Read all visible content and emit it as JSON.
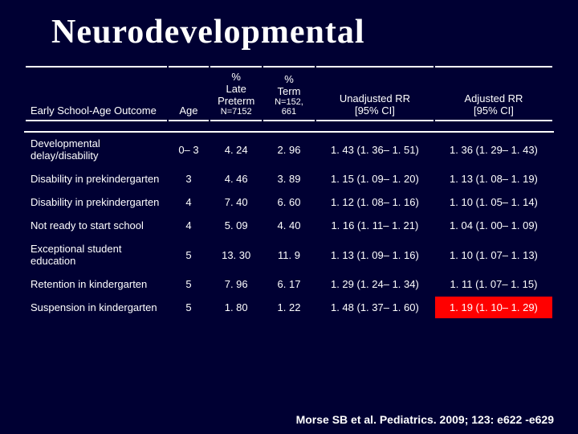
{
  "title": "Neurodevelopmental",
  "headers": {
    "outcome": "Early School-Age Outcome",
    "age": "Age",
    "late": {
      "l1": "%",
      "l2": "Late",
      "l3": "Preterm",
      "l4": "N=7152"
    },
    "term": {
      "l1": "%",
      "l2": "Term",
      "l3": "N=152,",
      "l4": "661"
    },
    "unadj": {
      "l1": "Unadjusted RR",
      "l2": "[95% CI]"
    },
    "adj": {
      "l1": "Adjusted RR",
      "l2": "[95% CI]"
    }
  },
  "rows": [
    {
      "outcome": "Developmental delay/disability",
      "age": "0– 3",
      "late": "4. 24",
      "term": "2. 96",
      "unadj": "1. 43 (1. 36– 1. 51)",
      "adj": "1. 36 (1. 29– 1. 43)"
    },
    {
      "outcome": "Disability in prekindergarten",
      "age": "3",
      "late": "4. 46",
      "term": "3. 89",
      "unadj": "1. 15 (1. 09– 1. 20)",
      "adj": "1. 13 (1. 08– 1. 19)"
    },
    {
      "outcome": "Disability in prekindergarten",
      "age": "4",
      "late": "7. 40",
      "term": "6. 60",
      "unadj": "1. 12 (1. 08– 1. 16)",
      "adj": "1. 10 (1. 05– 1. 14)"
    },
    {
      "outcome": "Not ready to start school",
      "age": "4",
      "late": "5. 09",
      "term": "4. 40",
      "unadj": "1. 16 (1. 11– 1. 21)",
      "adj": "1. 04 (1. 00– 1. 09)"
    },
    {
      "outcome": "Exceptional student education",
      "age": "5",
      "late": "13. 30",
      "term": "11. 9",
      "unadj": "1. 13 (1. 09– 1. 16)",
      "adj": "1. 10 (1. 07– 1. 13)"
    },
    {
      "outcome": "Retention in kindergarten",
      "age": "5",
      "late": "7. 96",
      "term": "6. 17",
      "unadj": "1. 29 (1. 24– 1. 34)",
      "adj": "1. 11 (1. 07– 1. 15)"
    },
    {
      "outcome": "Suspension in kindergarten",
      "age": "5",
      "late": "1. 80",
      "term": "1. 22",
      "unadj": "1. 48 (1. 37– 1. 60)",
      "adj": "1. 19 (1. 10– 1. 29)",
      "adj_highlight": true
    }
  ],
  "citation": "Morse SB et al. Pediatrics. 2009; 123: e622 -e629",
  "colors": {
    "bg": "#000033",
    "text": "#ffffff",
    "highlight": "#ff0000"
  }
}
